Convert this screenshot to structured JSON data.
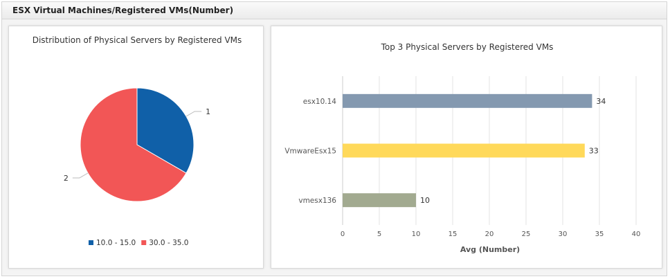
{
  "header": {
    "title": "ESX Virtual Machines/Registered VMs(Number)"
  },
  "colors": {
    "pie_slice_1": "#1060a8",
    "pie_slice_2": "#f25656",
    "bar_1": "#8499b0",
    "bar_2": "#ffd95a",
    "bar_3": "#a2aa90",
    "grid": "#e3e3e3"
  },
  "chart_data": [
    {
      "type": "pie",
      "title": "Distribution of Physical Servers by Registered VMs",
      "slices": [
        {
          "label": "1",
          "legend": "10.0 - 15.0",
          "value": 1,
          "color": "#1060a8"
        },
        {
          "label": "2",
          "legend": "30.0 - 35.0",
          "value": 2,
          "color": "#f25656"
        }
      ],
      "legend_position": "bottom"
    },
    {
      "type": "bar",
      "orientation": "horizontal",
      "title": "Top 3 Physical Servers by Registered VMs",
      "categories": [
        "esx10.14",
        "VmwareEsx15",
        "vmesx136"
      ],
      "values": [
        34,
        33,
        10
      ],
      "value_labels": [
        "34",
        "33",
        "10"
      ],
      "colors": [
        "#8499b0",
        "#ffd95a",
        "#a2aa90"
      ],
      "xlabel": "Avg (Number)",
      "xlim": [
        0,
        40
      ],
      "xticks": [
        "0",
        "5",
        "10",
        "15",
        "20",
        "25",
        "30",
        "35",
        "40"
      ],
      "grid": true
    }
  ]
}
